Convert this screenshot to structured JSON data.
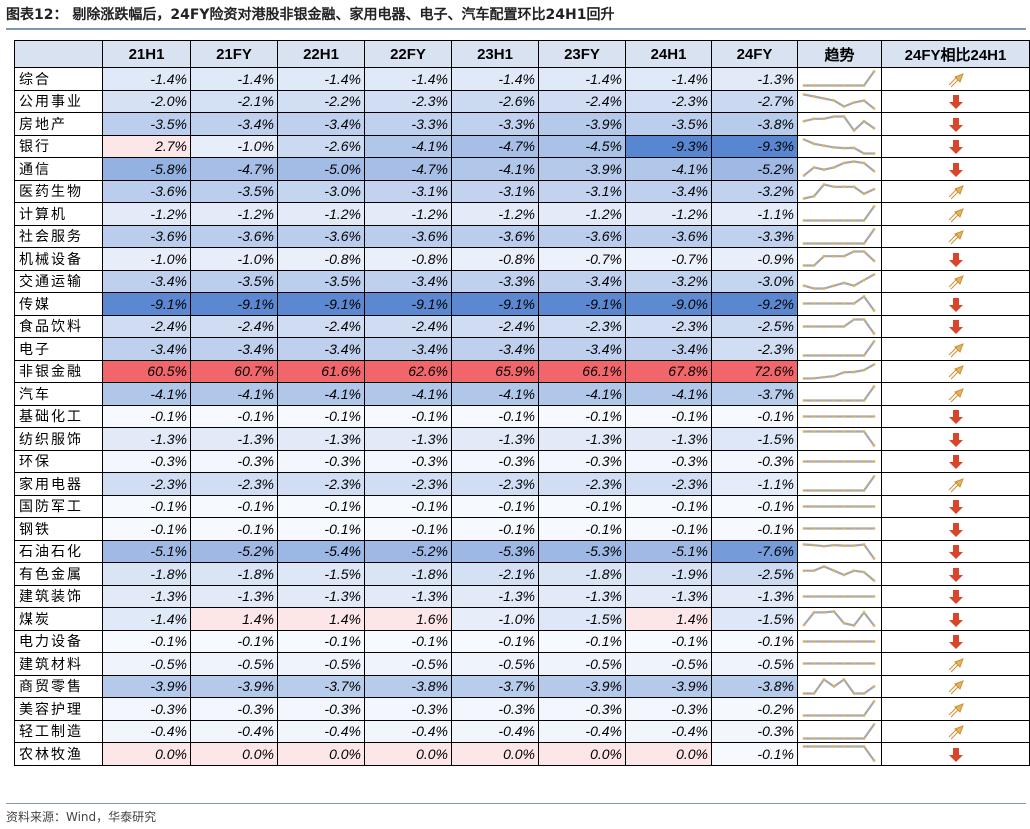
{
  "title": "图表12： 剔除涨跌幅后，24FY险资对港股非银金融、家用电器、电子、汽车配置环比24H1回升",
  "source": "资料来源：Wind，华泰研究",
  "columns": [
    "",
    "21H1",
    "21FY",
    "22H1",
    "22FY",
    "23H1",
    "23FY",
    "24H1",
    "24FY",
    "趋势",
    "24FY相比24H1"
  ],
  "colors": {
    "up_arrow": "#e9b25a",
    "down_arrow": "#d9452b",
    "trend_line": "#a8a8a8",
    "trend_point": "#e0b25a"
  },
  "chart_data": {
    "type": "table",
    "columns": [
      "21H1",
      "21FY",
      "22H1",
      "22FY",
      "23H1",
      "23FY",
      "24H1",
      "24FY"
    ],
    "rows": [
      {
        "name": "综合",
        "values": [
          "-1.4%",
          "-1.4%",
          "-1.4%",
          "-1.4%",
          "-1.4%",
          "-1.4%",
          "-1.4%",
          "-1.3%"
        ],
        "direction": "up"
      },
      {
        "name": "公用事业",
        "values": [
          "-2.0%",
          "-2.1%",
          "-2.2%",
          "-2.3%",
          "-2.6%",
          "-2.4%",
          "-2.3%",
          "-2.7%"
        ],
        "direction": "down"
      },
      {
        "name": "房地产",
        "values": [
          "-3.5%",
          "-3.4%",
          "-3.4%",
          "-3.3%",
          "-3.3%",
          "-3.9%",
          "-3.5%",
          "-3.8%"
        ],
        "direction": "down"
      },
      {
        "name": "银行",
        "values": [
          "2.7%",
          "-1.0%",
          "-2.6%",
          "-4.1%",
          "-4.7%",
          "-4.5%",
          "-9.3%",
          "-9.3%"
        ],
        "direction": "down"
      },
      {
        "name": "通信",
        "values": [
          "-5.8%",
          "-4.7%",
          "-5.0%",
          "-4.7%",
          "-4.1%",
          "-3.9%",
          "-4.1%",
          "-5.2%"
        ],
        "direction": "down"
      },
      {
        "name": "医药生物",
        "values": [
          "-3.6%",
          "-3.5%",
          "-3.0%",
          "-3.1%",
          "-3.1%",
          "-3.1%",
          "-3.4%",
          "-3.2%"
        ],
        "direction": "up"
      },
      {
        "name": "计算机",
        "values": [
          "-1.2%",
          "-1.2%",
          "-1.2%",
          "-1.2%",
          "-1.2%",
          "-1.2%",
          "-1.2%",
          "-1.1%"
        ],
        "direction": "up"
      },
      {
        "name": "社会服务",
        "values": [
          "-3.6%",
          "-3.6%",
          "-3.6%",
          "-3.6%",
          "-3.6%",
          "-3.6%",
          "-3.6%",
          "-3.3%"
        ],
        "direction": "up"
      },
      {
        "name": "机械设备",
        "values": [
          "-1.0%",
          "-1.0%",
          "-0.8%",
          "-0.8%",
          "-0.8%",
          "-0.7%",
          "-0.7%",
          "-0.9%"
        ],
        "direction": "down"
      },
      {
        "name": "交通运输",
        "values": [
          "-3.4%",
          "-3.5%",
          "-3.5%",
          "-3.4%",
          "-3.3%",
          "-3.4%",
          "-3.2%",
          "-3.0%"
        ],
        "direction": "up"
      },
      {
        "name": "传媒",
        "values": [
          "-9.1%",
          "-9.1%",
          "-9.1%",
          "-9.1%",
          "-9.1%",
          "-9.1%",
          "-9.0%",
          "-9.2%"
        ],
        "direction": "down"
      },
      {
        "name": "食品饮料",
        "values": [
          "-2.4%",
          "-2.4%",
          "-2.4%",
          "-2.4%",
          "-2.4%",
          "-2.3%",
          "-2.3%",
          "-2.5%"
        ],
        "direction": "down"
      },
      {
        "name": "电子",
        "values": [
          "-3.4%",
          "-3.4%",
          "-3.4%",
          "-3.4%",
          "-3.4%",
          "-3.4%",
          "-3.4%",
          "-2.3%"
        ],
        "direction": "up"
      },
      {
        "name": "非银金融",
        "values": [
          "60.5%",
          "60.7%",
          "61.6%",
          "62.6%",
          "65.9%",
          "66.1%",
          "67.8%",
          "72.6%"
        ],
        "direction": "up"
      },
      {
        "name": "汽车",
        "values": [
          "-4.1%",
          "-4.1%",
          "-4.1%",
          "-4.1%",
          "-4.1%",
          "-4.1%",
          "-4.1%",
          "-3.7%"
        ],
        "direction": "up"
      },
      {
        "name": "基础化工",
        "values": [
          "-0.1%",
          "-0.1%",
          "-0.1%",
          "-0.1%",
          "-0.1%",
          "-0.1%",
          "-0.1%",
          "-0.1%"
        ],
        "direction": "down"
      },
      {
        "name": "纺织服饰",
        "values": [
          "-1.3%",
          "-1.3%",
          "-1.3%",
          "-1.3%",
          "-1.3%",
          "-1.3%",
          "-1.3%",
          "-1.5%"
        ],
        "direction": "down"
      },
      {
        "name": "环保",
        "values": [
          "-0.3%",
          "-0.3%",
          "-0.3%",
          "-0.3%",
          "-0.3%",
          "-0.3%",
          "-0.3%",
          "-0.3%"
        ],
        "direction": "down"
      },
      {
        "name": "家用电器",
        "values": [
          "-2.3%",
          "-2.3%",
          "-2.3%",
          "-2.3%",
          "-2.3%",
          "-2.3%",
          "-2.3%",
          "-1.1%"
        ],
        "direction": "up"
      },
      {
        "name": "国防军工",
        "values": [
          "-0.1%",
          "-0.1%",
          "-0.1%",
          "-0.1%",
          "-0.1%",
          "-0.1%",
          "-0.1%",
          "-0.1%"
        ],
        "direction": "down"
      },
      {
        "name": "钢铁",
        "values": [
          "-0.1%",
          "-0.1%",
          "-0.1%",
          "-0.1%",
          "-0.1%",
          "-0.1%",
          "-0.1%",
          "-0.1%"
        ],
        "direction": "down"
      },
      {
        "name": "石油石化",
        "values": [
          "-5.1%",
          "-5.2%",
          "-5.4%",
          "-5.2%",
          "-5.3%",
          "-5.3%",
          "-5.1%",
          "-7.6%"
        ],
        "direction": "down"
      },
      {
        "name": "有色金属",
        "values": [
          "-1.8%",
          "-1.8%",
          "-1.5%",
          "-1.8%",
          "-2.1%",
          "-1.8%",
          "-1.9%",
          "-2.5%"
        ],
        "direction": "down"
      },
      {
        "name": "建筑装饰",
        "values": [
          "-1.3%",
          "-1.3%",
          "-1.3%",
          "-1.3%",
          "-1.3%",
          "-1.3%",
          "-1.3%",
          "-1.3%"
        ],
        "direction": "down"
      },
      {
        "name": "煤炭",
        "values": [
          "-1.4%",
          "1.4%",
          "1.4%",
          "1.6%",
          "-1.0%",
          "-1.5%",
          "1.4%",
          "-1.5%"
        ],
        "direction": "down"
      },
      {
        "name": "电力设备",
        "values": [
          "-0.1%",
          "-0.1%",
          "-0.1%",
          "-0.1%",
          "-0.1%",
          "-0.1%",
          "-0.1%",
          "-0.1%"
        ],
        "direction": "down"
      },
      {
        "name": "建筑材料",
        "values": [
          "-0.5%",
          "-0.5%",
          "-0.5%",
          "-0.5%",
          "-0.5%",
          "-0.5%",
          "-0.5%",
          "-0.5%"
        ],
        "direction": "up"
      },
      {
        "name": "商贸零售",
        "values": [
          "-3.9%",
          "-3.9%",
          "-3.7%",
          "-3.8%",
          "-3.7%",
          "-3.9%",
          "-3.9%",
          "-3.8%"
        ],
        "direction": "up"
      },
      {
        "name": "美容护理",
        "values": [
          "-0.3%",
          "-0.3%",
          "-0.3%",
          "-0.3%",
          "-0.3%",
          "-0.3%",
          "-0.3%",
          "-0.2%"
        ],
        "direction": "up"
      },
      {
        "name": "轻工制造",
        "values": [
          "-0.4%",
          "-0.4%",
          "-0.4%",
          "-0.4%",
          "-0.4%",
          "-0.4%",
          "-0.4%",
          "-0.3%"
        ],
        "direction": "up"
      },
      {
        "name": "农林牧渔",
        "values": [
          "0.0%",
          "0.0%",
          "0.0%",
          "0.0%",
          "0.0%",
          "0.0%",
          "0.0%",
          "-0.1%"
        ],
        "direction": "down"
      }
    ]
  }
}
